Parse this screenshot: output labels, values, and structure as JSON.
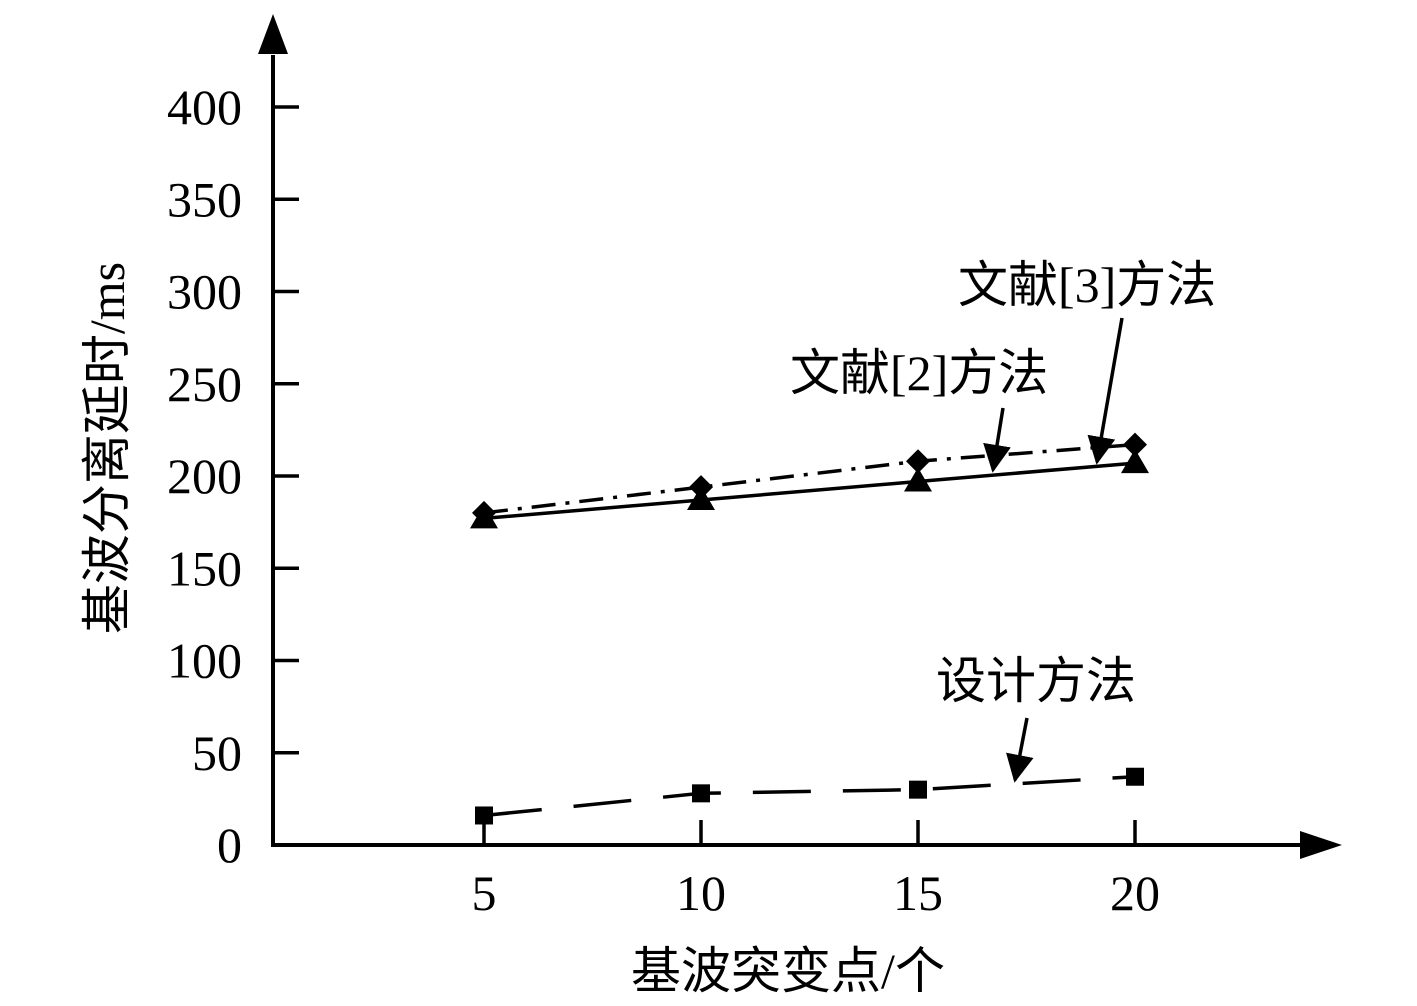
{
  "chart_data": {
    "type": "line",
    "xlabel": "基波突变点/个",
    "ylabel": "基波分离延时/ms",
    "x": [
      5,
      10,
      15,
      20
    ],
    "x_ticks": [
      "5",
      "10",
      "15",
      "20"
    ],
    "y_ticks": [
      "0",
      "50",
      "100",
      "150",
      "200",
      "250",
      "300",
      "350",
      "400"
    ],
    "xlim": [
      0,
      25
    ],
    "ylim": [
      0,
      400
    ],
    "grid": false,
    "legend": "none",
    "series": [
      {
        "name": "文献[2]方法",
        "values": [
          177,
          187,
          197,
          207
        ],
        "marker": "triangle",
        "line_style": "solid",
        "color": "#000000"
      },
      {
        "name": "文献[3]方法",
        "values": [
          180,
          194,
          208,
          217
        ],
        "marker": "diamond",
        "line_style": "dash-dot",
        "color": "#000000"
      },
      {
        "name": "设计方法",
        "values": [
          16,
          28,
          30,
          37
        ],
        "marker": "square",
        "line_style": "long-dash",
        "color": "#000000"
      }
    ]
  }
}
